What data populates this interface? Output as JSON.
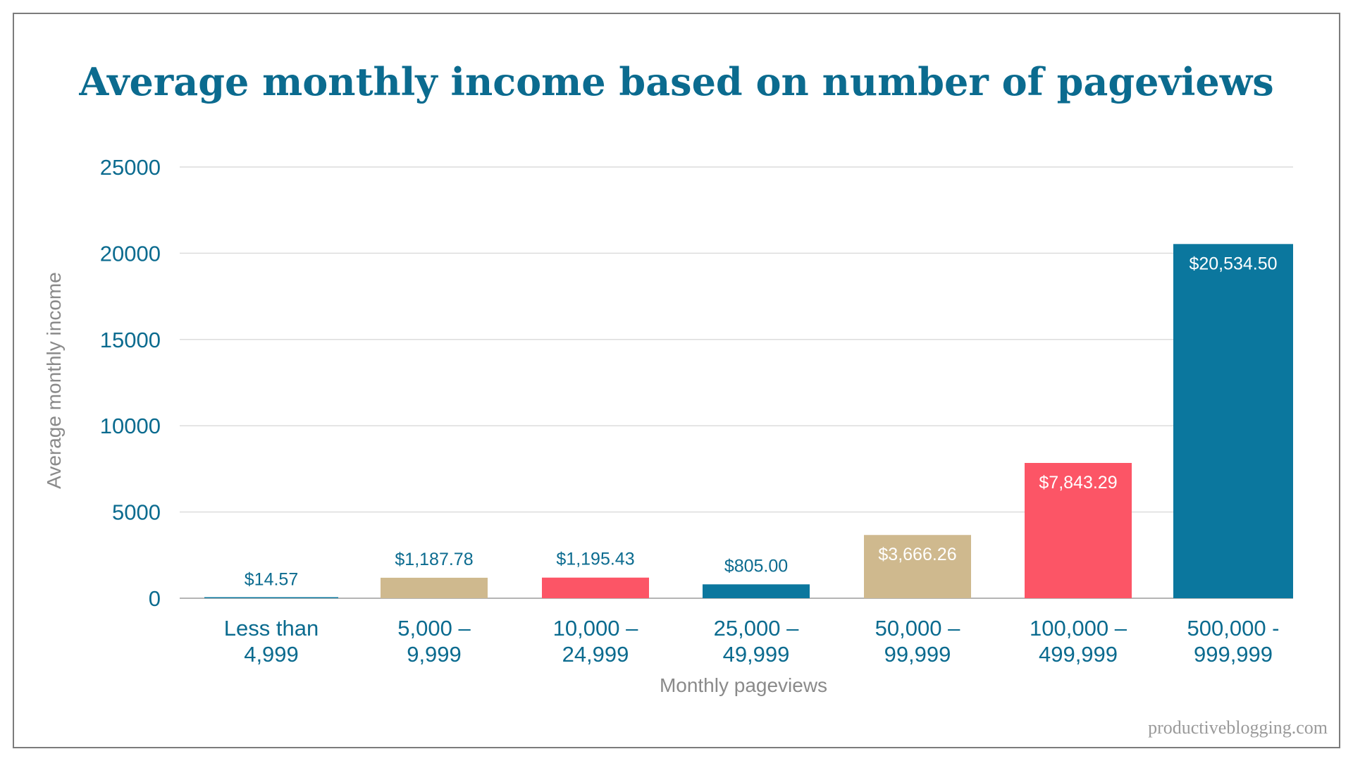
{
  "chart_data": {
    "type": "bar",
    "title": "Average monthly income based on number of pageviews",
    "xlabel": "Monthly pageviews",
    "ylabel": "Average monthly income",
    "ylim": [
      0,
      25000
    ],
    "yticks": [
      0,
      5000,
      10000,
      15000,
      20000,
      25000
    ],
    "ytick_labels": [
      "0",
      "5000",
      "10000",
      "15000",
      "20000",
      "25000"
    ],
    "grid": true,
    "categories": [
      [
        "Less than",
        "4,999"
      ],
      [
        "5,000 –",
        "9,999"
      ],
      [
        "10,000 –",
        "24,999"
      ],
      [
        "25,000 –",
        "49,999"
      ],
      [
        "50,000 –",
        "99,999"
      ],
      [
        "100,000 –",
        "499,999"
      ],
      [
        "500,000 -",
        "999,999"
      ]
    ],
    "values": [
      14.57,
      1187.78,
      1195.43,
      805.0,
      3666.26,
      7843.29,
      20534.5
    ],
    "data_labels": [
      "$14.57",
      "$1,187.78",
      "$1,195.43",
      "$805.00",
      "$3,666.26",
      "$7,843.29",
      "$20,534.50"
    ],
    "label_inside": [
      false,
      false,
      false,
      false,
      true,
      true,
      true
    ],
    "colors": [
      "#0b779e",
      "#cfb98e",
      "#fc5566",
      "#0b779e",
      "#cfb98e",
      "#fc5566",
      "#0b779e"
    ]
  },
  "credit": "productiveblogging.com"
}
